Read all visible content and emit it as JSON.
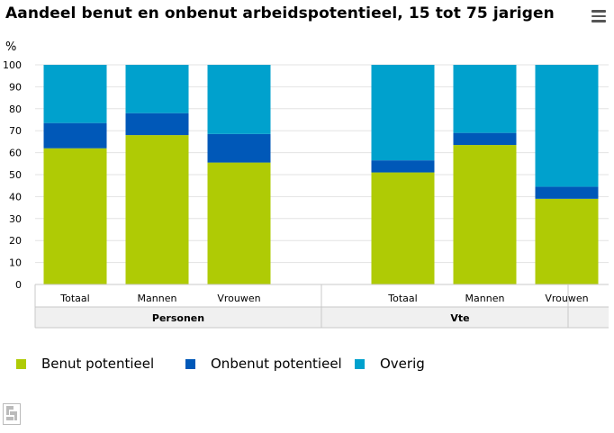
{
  "header": {
    "title": "Aandeel benut en onbenut arbeidspotentieel, 15 tot 75 jarigen"
  },
  "chart_data": {
    "type": "bar",
    "stacked": true,
    "ylabel": "%",
    "ylim": [
      0,
      100
    ],
    "yticks": [
      0,
      10,
      20,
      30,
      40,
      50,
      60,
      70,
      80,
      90,
      100
    ],
    "grid": true,
    "legend_position": "bottom-left",
    "groups": [
      {
        "label": "Personen",
        "categories": [
          "Totaal",
          "Mannen",
          "Vrouwen"
        ]
      },
      {
        "label": "Vte",
        "categories": [
          "Totaal",
          "Mannen",
          "Vrouwen"
        ]
      }
    ],
    "categories": [
      "Totaal",
      "Mannen",
      "Vrouwen",
      "",
      "Totaal",
      "Mannen",
      "Vrouwen"
    ],
    "series": [
      {
        "name": "Benut potentieel",
        "color": "#afcb05",
        "values": [
          62,
          68,
          55.5,
          null,
          51,
          63.5,
          39
        ]
      },
      {
        "name": "Onbenut potentieel",
        "color": "#0058b8",
        "values": [
          11.5,
          10,
          13,
          null,
          5.5,
          5.5,
          5.5
        ]
      },
      {
        "name": "Overig",
        "color": "#00a1cd",
        "values": [
          26.5,
          22,
          31.5,
          null,
          43.5,
          31,
          55.5
        ]
      }
    ]
  }
}
